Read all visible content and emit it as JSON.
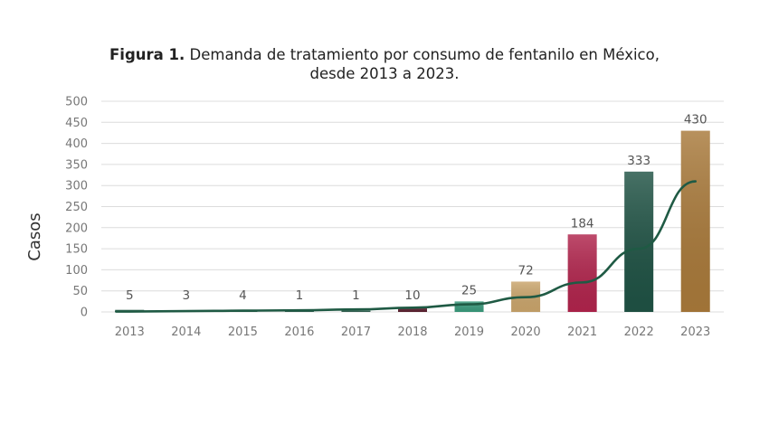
{
  "chart_data": {
    "type": "bar",
    "title_bold": "Figura 1.",
    "title": "Demanda de tratamiento por consumo de fentanilo en México,",
    "subtitle": "desde 2013 a 2023.",
    "xlabel": "",
    "ylabel": "Casos",
    "ylim": [
      0,
      500
    ],
    "yticks": [
      0,
      50,
      100,
      150,
      200,
      250,
      300,
      350,
      400,
      450,
      500
    ],
    "grid": true,
    "legend": "none",
    "categories": [
      "2013",
      "2014",
      "2015",
      "2016",
      "2017",
      "2018",
      "2019",
      "2020",
      "2021",
      "2022",
      "2023"
    ],
    "values": [
      5,
      3,
      4,
      1,
      1,
      10,
      25,
      72,
      184,
      333,
      430
    ],
    "bar_colors": [
      "#2e5e4e",
      "#2e5e4e",
      "#2e5e4e",
      "#2e5e4e",
      "#2e5e4e",
      "#5a1f2e",
      "#3a9a7c",
      "#c9a46b",
      "#b0244c",
      "#1f5244",
      "#a8793a"
    ],
    "trendline": {
      "type": "exponential",
      "color": "#1f5a44",
      "values": [
        1,
        2,
        3,
        4,
        6,
        10,
        18,
        35,
        70,
        150,
        310
      ]
    }
  }
}
